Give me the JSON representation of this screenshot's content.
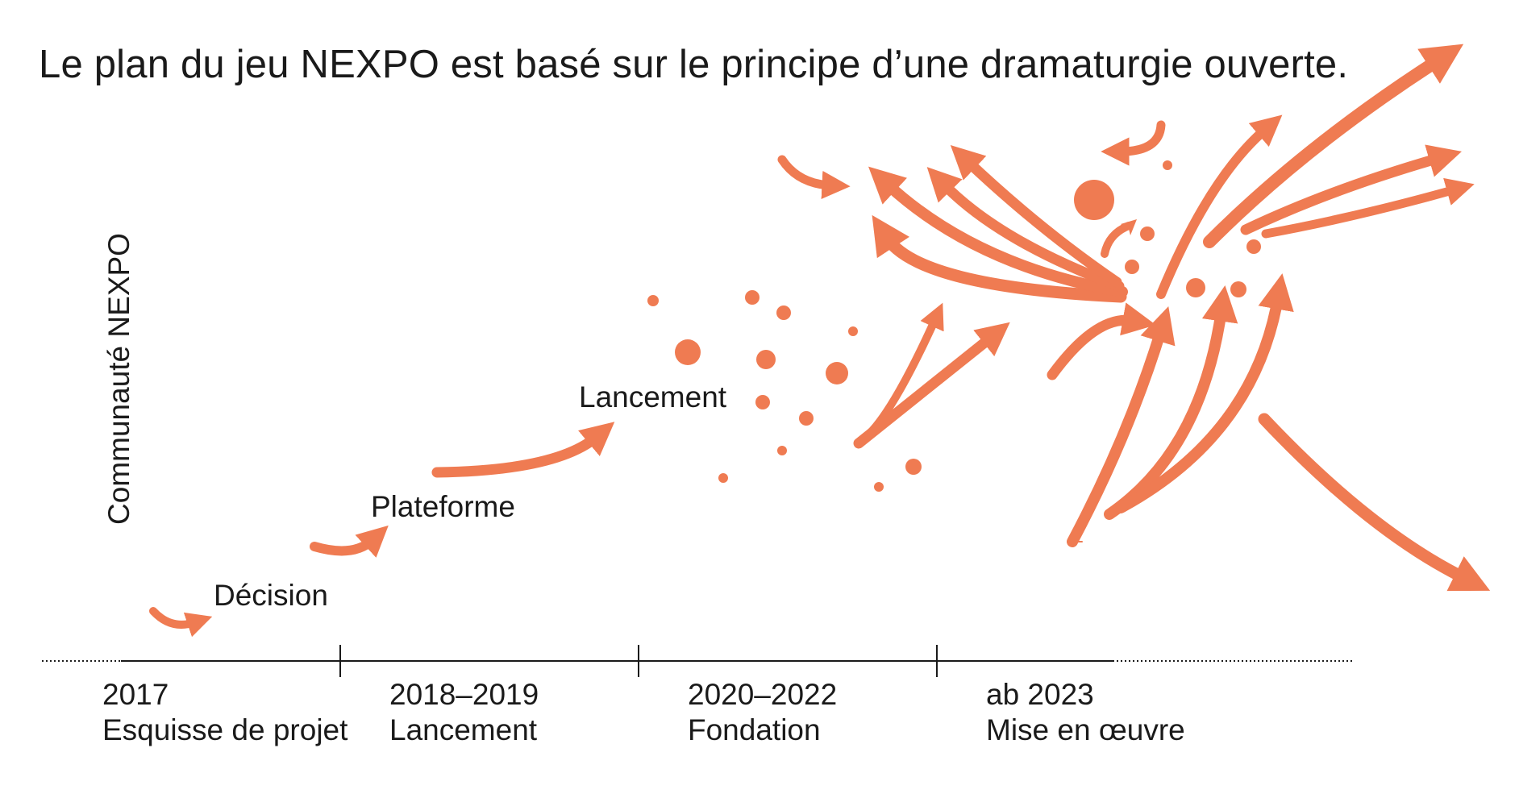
{
  "title": "Le plan du jeu NEXPO est basé sur le principe d’une dramaturgie ouverte.",
  "y_axis_label": "Communauté NEXPO",
  "milestones": [
    "Décision",
    "Plateforme",
    "Lancement"
  ],
  "periods": [
    {
      "year": "2017",
      "phase": "Esquisse de projet"
    },
    {
      "year": "2018–2019",
      "phase": "Lancement"
    },
    {
      "year": "2020–2022",
      "phase": "Fondation"
    },
    {
      "year": "ab 2023",
      "phase": "Mise en œuvre"
    }
  ],
  "colors": {
    "accent": "#ef7b52",
    "text": "#1a1a1a",
    "axis": "#1a1a1a"
  }
}
